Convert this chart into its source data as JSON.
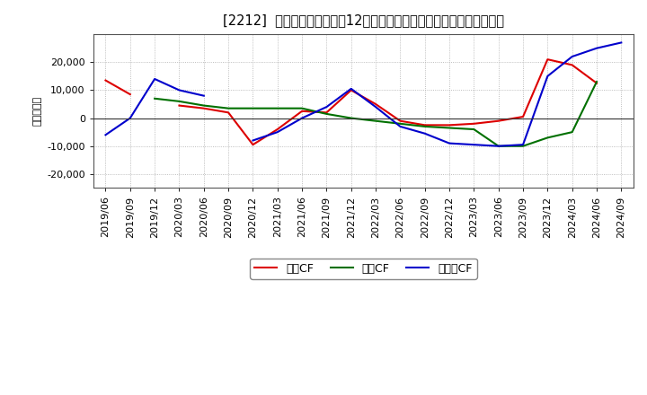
{
  "title": "[2212]  キャッシュフローの12か月移動合計の対前年同期増減額の推移",
  "ylabel": "（百万円）",
  "background_color": "#ffffff",
  "plot_bg_color": "#ffffff",
  "grid_color": "#aaaaaa",
  "x_labels": [
    "2019/06",
    "2019/09",
    "2019/12",
    "2020/03",
    "2020/06",
    "2020/09",
    "2020/12",
    "2021/03",
    "2021/06",
    "2021/09",
    "2021/12",
    "2022/03",
    "2022/06",
    "2022/09",
    "2022/12",
    "2023/03",
    "2023/06",
    "2023/09",
    "2023/12",
    "2024/03",
    "2024/06",
    "2024/09"
  ],
  "operating_cf": [
    13500,
    8500,
    null,
    4500,
    3500,
    2000,
    -9500,
    -4000,
    2500,
    2000,
    10000,
    5000,
    -1000,
    -2500,
    -2500,
    -2000,
    -1000,
    500,
    21000,
    19000,
    12500,
    null
  ],
  "investing_cf": [
    null,
    null,
    7000,
    6000,
    4500,
    3500,
    3500,
    3500,
    3500,
    1500,
    0,
    -1000,
    -2000,
    -3000,
    -3500,
    -4000,
    -10000,
    -10000,
    -7000,
    -5000,
    13000,
    null
  ],
  "free_cf": [
    -6000,
    0,
    14000,
    10000,
    8000,
    null,
    -8000,
    -5000,
    0,
    4000,
    10500,
    4000,
    -3000,
    -5500,
    -9000,
    -9500,
    -10000,
    -9500,
    15000,
    22000,
    25000,
    27000
  ],
  "operating_color": "#dd0000",
  "investing_color": "#007000",
  "free_color": "#0000cc",
  "ylim": [
    -25000,
    30000
  ],
  "yticks": [
    -20000,
    -10000,
    0,
    10000,
    20000
  ],
  "legend_labels": [
    "営業CF",
    "投資CF",
    "フリーCF"
  ]
}
